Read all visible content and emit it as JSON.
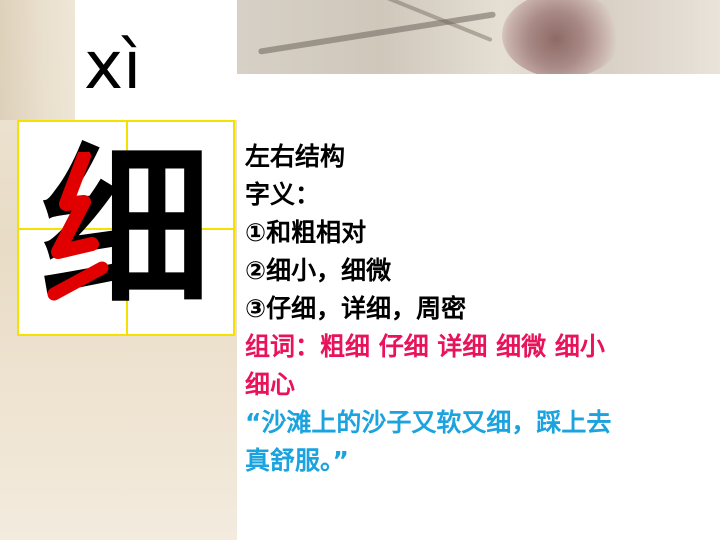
{
  "pinyin": "xì",
  "character": "细",
  "lines": {
    "structure": "左右结构",
    "meaning_label": "字义：",
    "meaning_1": "①和粗相对",
    "meaning_2": "②细小，细微",
    "meaning_3": "③仔细，详细，周密"
  },
  "words": {
    "line1": "组词：粗细 仔细 详细 细微 细小",
    "line2": "细心"
  },
  "sentence": {
    "line1": "“沙滩上的沙子又软又细，踩上去",
    "line2": "真舒服。”"
  },
  "colors": {
    "radical": "#e00000",
    "words": "#e8135a",
    "sentence": "#1ba3df",
    "grid": "#f5e100"
  }
}
